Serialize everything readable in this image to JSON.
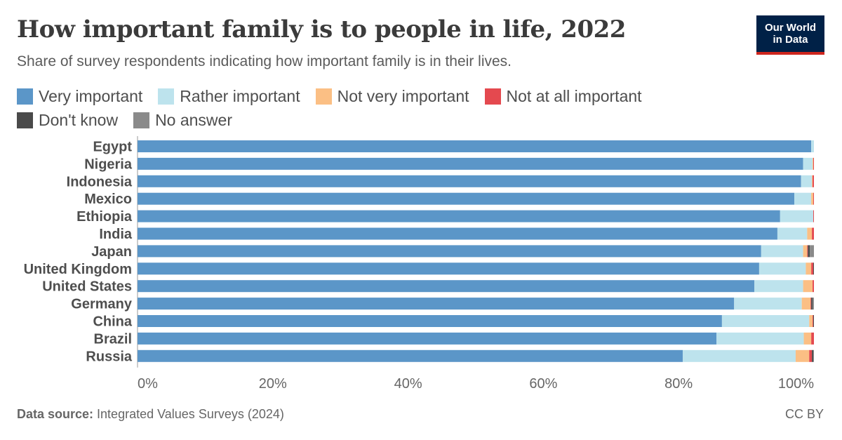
{
  "header": {
    "title": "How important family is to people in life, 2022",
    "subtitle": "Share of survey respondents indicating how important family is in their lives.",
    "logo_line1": "Our World",
    "logo_line2": "in Data"
  },
  "legend": [
    {
      "label": "Very important",
      "color": "#5b96c8"
    },
    {
      "label": "Rather important",
      "color": "#bde3ed"
    },
    {
      "label": "Not very important",
      "color": "#fbbf84"
    },
    {
      "label": "Not at all important",
      "color": "#e4494f"
    },
    {
      "label": "Don't know",
      "color": "#4a4a4a"
    },
    {
      "label": "No answer",
      "color": "#8a8a8a"
    }
  ],
  "chart_data": {
    "type": "bar",
    "orientation": "horizontal",
    "stacked": true,
    "categories": [
      "Egypt",
      "Nigeria",
      "Indonesia",
      "Mexico",
      "Ethiopia",
      "India",
      "Japan",
      "United Kingdom",
      "United States",
      "Germany",
      "China",
      "Brazil",
      "Russia"
    ],
    "series": [
      {
        "name": "Very important",
        "color": "#5b96c8",
        "values": [
          99.6,
          98.4,
          98.1,
          97.1,
          95.0,
          94.6,
          92.2,
          91.9,
          91.2,
          88.2,
          86.4,
          85.6,
          80.6
        ]
      },
      {
        "name": "Rather important",
        "color": "#bde3ed",
        "values": [
          0.4,
          1.4,
          1.6,
          2.5,
          4.9,
          4.4,
          6.2,
          6.9,
          7.2,
          10.0,
          12.9,
          12.9,
          16.7
        ]
      },
      {
        "name": "Not very important",
        "color": "#fbbf84",
        "values": [
          0.0,
          0.1,
          0.1,
          0.3,
          0.0,
          0.7,
          0.6,
          0.8,
          1.4,
          1.3,
          0.5,
          1.1,
          2.0
        ]
      },
      {
        "name": "Not at all important",
        "color": "#e4494f",
        "values": [
          0.0,
          0.1,
          0.2,
          0.1,
          0.1,
          0.3,
          0.1,
          0.3,
          0.2,
          0.1,
          0.1,
          0.4,
          0.4
        ]
      },
      {
        "name": "Don't know",
        "color": "#4a4a4a",
        "values": [
          0.0,
          0.0,
          0.0,
          0.0,
          0.0,
          0.0,
          0.3,
          0.1,
          0.0,
          0.2,
          0.1,
          0.0,
          0.2
        ]
      },
      {
        "name": "No answer",
        "color": "#8a8a8a",
        "values": [
          0.0,
          0.0,
          0.0,
          0.0,
          0.0,
          0.0,
          0.6,
          0.0,
          0.0,
          0.2,
          0.0,
          0.0,
          0.1
        ]
      }
    ],
    "xlim": [
      0,
      100
    ],
    "xticks": [
      "0%",
      "20%",
      "40%",
      "60%",
      "80%",
      "100%"
    ],
    "legend_position": "top",
    "grid": false
  },
  "footer": {
    "source_label": "Data source:",
    "source_text": " Integrated Values Surveys (2024)",
    "license": "CC BY"
  }
}
